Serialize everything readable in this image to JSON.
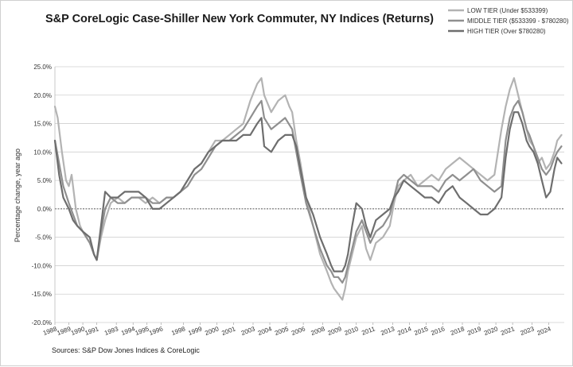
{
  "chart_data": {
    "type": "line",
    "title": "S&P CoreLogic Case-Shiller New York Commuter, NY Indices (Returns)",
    "xlabel": "",
    "ylabel": "Percentage change, year ago",
    "source": "Sources: S&P Dow Jones Indices & CoreLogic",
    "ylim": [
      -20,
      25
    ],
    "xlim": [
      1988,
      2024.5
    ],
    "y_ticks": [
      "25.0%",
      "20.0%",
      "15.0%",
      "10.0%",
      "5.0%",
      "0.0%",
      "-5.0%",
      "-10.0%",
      "-15.0%",
      "-20.0%"
    ],
    "y_tick_values": [
      25,
      20,
      15,
      10,
      5,
      0,
      -5,
      -10,
      -15,
      -20
    ],
    "x_ticks": [
      "1988",
      "1989",
      "1990",
      "1991",
      "1993",
      "1994",
      "1995",
      "1996",
      "1998",
      "1999",
      "2000",
      "2001",
      "2003",
      "2004",
      "2005",
      "2006",
      "2008",
      "2009",
      "2010",
      "2011",
      "2013",
      "2014",
      "2015",
      "2016",
      "2018",
      "2019",
      "2020",
      "2021",
      "2023",
      "2024"
    ],
    "x_tick_values": [
      1988,
      1989,
      1990,
      1991,
      1992.4,
      1993.6,
      1994.6,
      1995.6,
      1997.2,
      1998.4,
      1999.6,
      2000.8,
      2002.2,
      2003.4,
      2004.6,
      2005.8,
      2007.2,
      2008.4,
      2009.6,
      2010.8,
      2012.2,
      2013.4,
      2014.6,
      2015.8,
      2017.2,
      2018.4,
      2019.6,
      2020.8,
      2022.2,
      2023.4
    ],
    "grid": true,
    "legend_position": "top-right",
    "series": [
      {
        "name": "LOW TIER (Under $533399)",
        "color": "#b3b3b3",
        "x": [
          1988.0,
          1988.2,
          1988.5,
          1988.8,
          1989.0,
          1989.2,
          1989.5,
          1989.8,
          1990.0,
          1990.5,
          1990.8,
          1991.0,
          1991.3,
          1991.6,
          1992.0,
          1992.5,
          1993.0,
          1993.5,
          1994.0,
          1994.5,
          1995.0,
          1995.5,
          1996.0,
          1996.5,
          1997.0,
          1997.5,
          1998.0,
          1998.5,
          1999.0,
          1999.5,
          2000.0,
          2000.5,
          2001.0,
          2001.5,
          2002.0,
          2002.5,
          2002.8,
          2003.0,
          2003.5,
          2004.0,
          2004.5,
          2004.8,
          2005.0,
          2005.3,
          2005.6,
          2006.0,
          2006.5,
          2007.0,
          2007.5,
          2007.8,
          2008.0,
          2008.3,
          2008.6,
          2008.8,
          2009.0,
          2009.3,
          2009.6,
          2010.0,
          2010.3,
          2010.6,
          2011.0,
          2011.5,
          2012.0,
          2012.3,
          2012.6,
          2013.0,
          2013.5,
          2014.0,
          2014.5,
          2015.0,
          2015.5,
          2016.0,
          2016.5,
          2017.0,
          2017.5,
          2018.0,
          2018.5,
          2019.0,
          2019.5,
          2020.0,
          2020.3,
          2020.6,
          2020.9,
          2021.2,
          2021.5,
          2021.8,
          2022.0,
          2022.3,
          2022.6,
          2022.9,
          2023.2,
          2023.5,
          2023.8,
          2024.0,
          2024.3
        ],
        "values": [
          18,
          16,
          10,
          5,
          4,
          6,
          0,
          -3,
          -4,
          -6,
          -8,
          -9,
          -5,
          -2,
          1,
          2,
          1,
          2,
          2,
          1,
          2,
          1,
          2,
          2,
          3,
          5,
          7,
          8,
          10,
          12,
          12,
          13,
          14,
          15,
          19,
          22,
          23,
          20,
          17,
          19,
          20,
          18,
          17,
          12,
          8,
          2,
          -3,
          -8,
          -11,
          -13,
          -14,
          -15,
          -16,
          -14,
          -11,
          -8,
          -5,
          -3,
          -7,
          -9,
          -6,
          -5,
          -3,
          1,
          4,
          5,
          6,
          4,
          5,
          6,
          5,
          7,
          8,
          9,
          8,
          7,
          6,
          5,
          6,
          14,
          18,
          21,
          23,
          20,
          17,
          14,
          12,
          11,
          8,
          9,
          7,
          8,
          10,
          12,
          13
        ]
      },
      {
        "name": "MIDDLE TIER ($533399 - $780280)",
        "color": "#8f8f8f",
        "x": [
          1988.0,
          1988.3,
          1988.6,
          1989.0,
          1989.3,
          1989.6,
          1990.0,
          1990.5,
          1990.8,
          1991.0,
          1991.3,
          1991.6,
          1992.0,
          1992.5,
          1993.0,
          1993.5,
          1994.0,
          1994.5,
          1995.0,
          1995.5,
          1996.0,
          1996.5,
          1997.0,
          1997.5,
          1998.0,
          1998.5,
          1999.0,
          1999.5,
          2000.0,
          2000.5,
          2001.0,
          2001.5,
          2002.0,
          2002.5,
          2002.8,
          2003.0,
          2003.5,
          2004.0,
          2004.5,
          2005.0,
          2005.3,
          2005.6,
          2006.0,
          2006.5,
          2007.0,
          2007.5,
          2007.8,
          2008.0,
          2008.3,
          2008.6,
          2008.8,
          2009.0,
          2009.3,
          2009.6,
          2010.0,
          2010.3,
          2010.6,
          2011.0,
          2011.5,
          2012.0,
          2012.3,
          2012.6,
          2013.0,
          2013.5,
          2014.0,
          2014.5,
          2015.0,
          2015.5,
          2016.0,
          2016.5,
          2017.0,
          2017.5,
          2018.0,
          2018.5,
          2019.0,
          2019.5,
          2020.0,
          2020.3,
          2020.6,
          2020.9,
          2021.2,
          2021.5,
          2021.8,
          2022.0,
          2022.3,
          2022.6,
          2022.9,
          2023.2,
          2023.5,
          2023.8,
          2024.0,
          2024.3
        ],
        "values": [
          12,
          8,
          4,
          1,
          -1,
          -3,
          -4,
          -6,
          -8,
          -9,
          -4,
          0,
          2,
          1,
          1,
          2,
          2,
          2,
          1,
          1,
          2,
          2,
          3,
          4,
          6,
          7,
          9,
          11,
          12,
          12,
          13,
          14,
          16,
          18,
          19,
          16,
          14,
          15,
          16,
          14,
          10,
          6,
          1,
          -3,
          -7,
          -10,
          -11,
          -12,
          -12,
          -13,
          -12,
          -10,
          -7,
          -4,
          -2,
          -4,
          -6,
          -4,
          -3,
          -1,
          2,
          5,
          6,
          5,
          4,
          4,
          4,
          3,
          5,
          6,
          5,
          6,
          7,
          5,
          4,
          3,
          4,
          12,
          16,
          18,
          19,
          17,
          14,
          13,
          11,
          9,
          7,
          6,
          7,
          9,
          10,
          11
        ]
      },
      {
        "name": "HIGH TIER (Over $780280)",
        "color": "#6e6e6e",
        "x": [
          1988.0,
          1988.3,
          1988.6,
          1989.0,
          1989.3,
          1989.6,
          1990.0,
          1990.5,
          1990.8,
          1991.0,
          1991.3,
          1991.6,
          1992.0,
          1992.5,
          1993.0,
          1993.5,
          1994.0,
          1994.5,
          1995.0,
          1995.5,
          1996.0,
          1996.5,
          1997.0,
          1997.5,
          1998.0,
          1998.5,
          1999.0,
          1999.5,
          2000.0,
          2000.5,
          2001.0,
          2001.5,
          2002.0,
          2002.5,
          2002.8,
          2003.0,
          2003.5,
          2004.0,
          2004.5,
          2005.0,
          2005.3,
          2005.6,
          2006.0,
          2006.5,
          2007.0,
          2007.5,
          2007.8,
          2008.0,
          2008.3,
          2008.6,
          2008.8,
          2009.0,
          2009.3,
          2009.6,
          2010.0,
          2010.3,
          2010.6,
          2011.0,
          2011.5,
          2012.0,
          2012.3,
          2012.6,
          2013.0,
          2013.5,
          2014.0,
          2014.5,
          2015.0,
          2015.5,
          2016.0,
          2016.5,
          2017.0,
          2017.5,
          2018.0,
          2018.5,
          2019.0,
          2019.5,
          2020.0,
          2020.3,
          2020.6,
          2020.9,
          2021.2,
          2021.5,
          2021.8,
          2022.0,
          2022.3,
          2022.6,
          2022.9,
          2023.2,
          2023.5,
          2023.8,
          2024.0,
          2024.3
        ],
        "values": [
          12,
          6,
          2,
          0,
          -2,
          -3,
          -4,
          -5,
          -8,
          -9,
          -3,
          3,
          2,
          2,
          3,
          3,
          3,
          2,
          0,
          0,
          1,
          2,
          3,
          5,
          7,
          8,
          10,
          11,
          12,
          12,
          12,
          13,
          13,
          15,
          16,
          11,
          10,
          12,
          13,
          13,
          11,
          7,
          2,
          -1,
          -5,
          -8,
          -10,
          -11,
          -11,
          -11,
          -10,
          -8,
          -3,
          1,
          0,
          -3,
          -5,
          -2,
          -1,
          0,
          2,
          3,
          5,
          4,
          3,
          2,
          2,
          1,
          3,
          4,
          2,
          1,
          0,
          -1,
          -1,
          0,
          2,
          9,
          14,
          17,
          17,
          15,
          12,
          11,
          10,
          8,
          5,
          2,
          3,
          7,
          9,
          8
        ]
      }
    ]
  }
}
